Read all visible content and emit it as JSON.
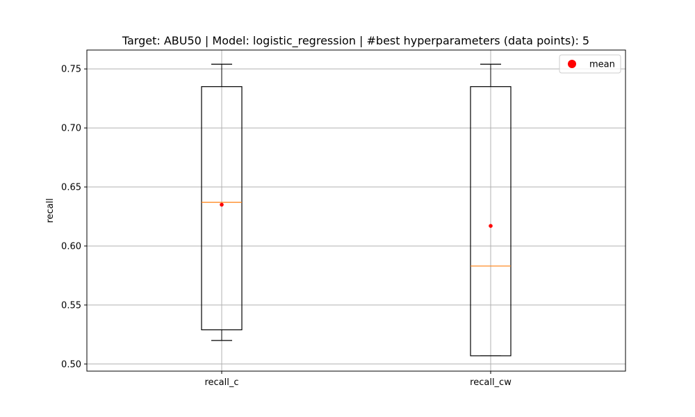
{
  "chart_data": {
    "type": "box",
    "title": "Target: ABU50 | Model: logistic_regression | #best hyperparameters (data points): 5",
    "xlabel": "",
    "ylabel": "recall",
    "ylim": [
      0.494,
      0.766
    ],
    "yticks": [
      0.5,
      0.55,
      0.6,
      0.65,
      0.7,
      0.75
    ],
    "ytick_labels": [
      "0.50",
      "0.55",
      "0.60",
      "0.65",
      "0.70",
      "0.75"
    ],
    "grid": true,
    "legend": {
      "placement": "top-right",
      "entries": [
        {
          "label": "mean",
          "color": "#ff0000",
          "marker": "circle"
        }
      ]
    },
    "categories": [
      "recall_c",
      "recall_cw"
    ],
    "boxes": [
      {
        "name": "recall_c",
        "whisker_low": 0.52,
        "q1": 0.529,
        "median": 0.637,
        "q3": 0.735,
        "whisker_high": 0.754,
        "mean": 0.635
      },
      {
        "name": "recall_cw",
        "whisker_low": 0.507,
        "q1": 0.507,
        "median": 0.583,
        "q3": 0.735,
        "whisker_high": 0.754,
        "mean": 0.617
      }
    ],
    "colors": {
      "box": "#000000",
      "median": "#ff7f0e",
      "mean": "#ff0000",
      "grid": "#b0b0b0"
    }
  }
}
